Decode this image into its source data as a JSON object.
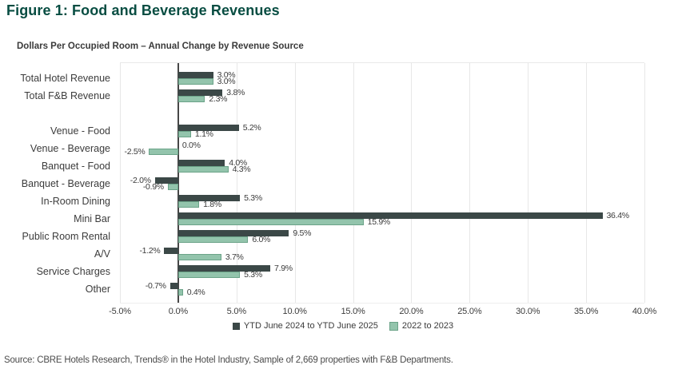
{
  "figure": {
    "title": "Figure 1: Food and Beverage Revenues"
  },
  "colors": {
    "title_teal": "#084d42",
    "series_dark": "#3b4847",
    "series_green_fill": "#93c4ac",
    "series_green_border": "#6ba388",
    "gridline": "#e7e7e7",
    "zero_line": "#474747",
    "text": "#3a3a3a"
  },
  "chart_data": {
    "type": "bar",
    "orientation": "horizontal",
    "title": "Dollars Per Occupied Room – Annual Change by Revenue Source",
    "categories": [
      "Total Hotel Revenue",
      "Total F&B Revenue",
      "Venue - Food",
      "Venue - Beverage",
      "Banquet - Food",
      "Banquet - Beverage",
      "In-Room Dining",
      "Mini Bar",
      "Public Room Rental",
      "A/V",
      "Service Charges",
      "Other"
    ],
    "gap_after_index": 1,
    "series": [
      {
        "name": "YTD June 2024 to YTD June 2025",
        "color": "#3b4847",
        "values": [
          3.0,
          3.8,
          5.2,
          0.0,
          4.0,
          -2.0,
          5.3,
          36.4,
          9.5,
          -1.2,
          7.9,
          -0.7
        ]
      },
      {
        "name": "2022 to 2023",
        "color": "#93c4ac",
        "border_color": "#6ba388",
        "values": [
          3.0,
          2.3,
          1.1,
          -2.5,
          4.3,
          -0.9,
          1.8,
          15.9,
          6.0,
          3.7,
          5.3,
          0.4
        ]
      }
    ],
    "value_label_suffix": "%",
    "xlim": [
      -5,
      40
    ],
    "x_tick_values": [
      -5,
      0,
      5,
      10,
      15,
      20,
      25,
      30,
      35,
      40
    ],
    "x_ticks": [
      "-5.0%",
      "0.0%",
      "5.0%",
      "10.0%",
      "15.0%",
      "20.0%",
      "25.0%",
      "30.0%",
      "35.0%",
      "40.0%"
    ],
    "grid": "vertical",
    "legend_position": "bottom"
  },
  "source": {
    "text": "Source: CBRE Hotels Research, Trends® in the Hotel Industry, Sample of 2,669 properties with F&B Departments."
  }
}
